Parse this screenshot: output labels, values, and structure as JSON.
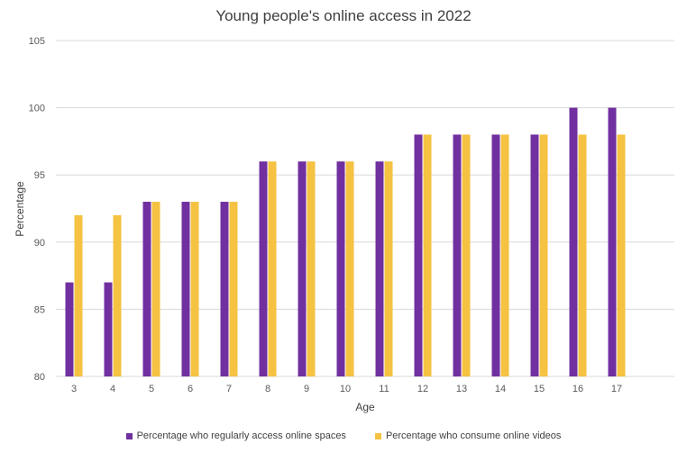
{
  "chart_data": {
    "type": "bar",
    "title": "Young people's online access in 2022",
    "xlabel": "Age",
    "ylabel": "Percentage",
    "ylim": [
      80,
      105
    ],
    "yticks": [
      80,
      85,
      90,
      95,
      100,
      105
    ],
    "grid": true,
    "legend_position": "bottom",
    "categories": [
      "3",
      "4",
      "5",
      "6",
      "7",
      "8",
      "9",
      "10",
      "11",
      "12",
      "13",
      "14",
      "15",
      "16",
      "17"
    ],
    "series": [
      {
        "name": "Percentage who regularly access online spaces",
        "color": "#7030A0",
        "values": [
          87,
          87,
          93,
          93,
          93,
          96,
          96,
          96,
          96,
          98,
          98,
          98,
          98,
          100,
          100
        ]
      },
      {
        "name": "Percentage who consume online videos",
        "color": "#F5C242",
        "values": [
          92,
          92,
          93,
          93,
          93,
          96,
          96,
          96,
          96,
          98,
          98,
          98,
          98,
          98,
          98
        ]
      }
    ]
  }
}
